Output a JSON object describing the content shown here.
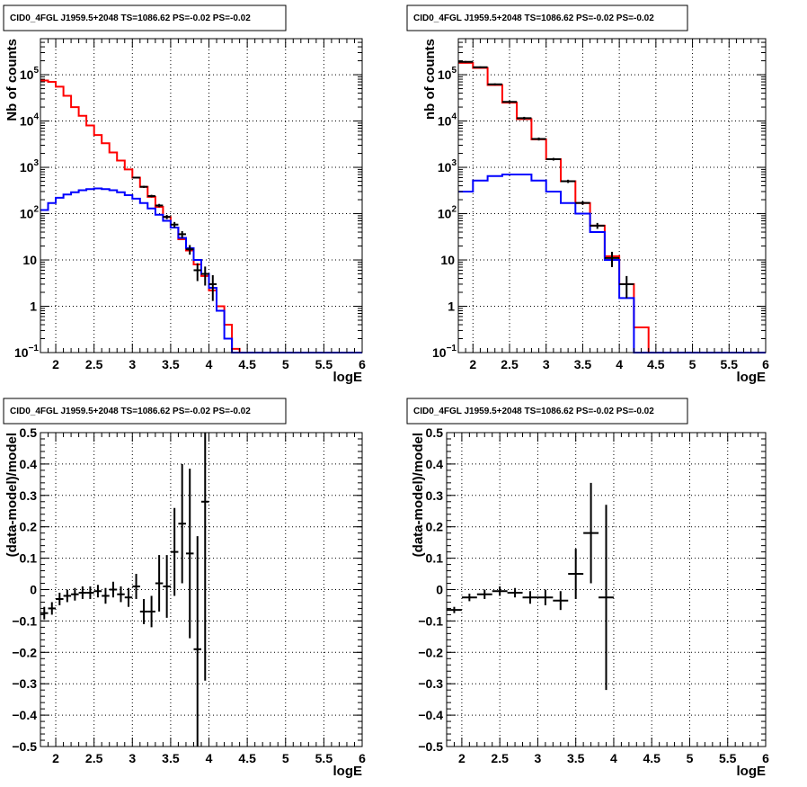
{
  "chart_data": [
    {
      "type": "histogram",
      "title": "CID0_4FGL J1959.5+2048 TS=1086.62 PS=-0.02 PS=-0.02",
      "xlabel": "logE",
      "ylabel": "Nb of counts",
      "xlim": [
        1.8,
        6.0
      ],
      "ylim": [
        0.1,
        600000
      ],
      "log_y": true,
      "grid": true,
      "bin_width": 0.1,
      "bin_edges": [
        1.8,
        1.9,
        2.0,
        2.1,
        2.2,
        2.3,
        2.4,
        2.5,
        2.6,
        2.7,
        2.8,
        2.9,
        3.0,
        3.1,
        3.2,
        3.3,
        3.4,
        3.5,
        3.6,
        3.7,
        3.8,
        3.9,
        4.0,
        4.1,
        4.2,
        4.3,
        4.4,
        4.5,
        4.6,
        4.7,
        4.8,
        4.9,
        5.0,
        5.1,
        5.2,
        5.3,
        5.4,
        5.5,
        5.6,
        5.7,
        5.8,
        5.9,
        6.0
      ],
      "series": [
        {
          "color": "#ff0000",
          "values": [
            75000,
            70000,
            55000,
            35000,
            20000,
            13000,
            8000,
            5000,
            3300,
            2100,
            1400,
            900,
            600,
            380,
            230,
            140,
            85,
            50,
            28,
            16,
            8,
            4.5,
            2.2,
            1.0,
            0.4,
            0.12,
            0.1,
            0.1,
            0.1,
            0.1,
            0.1,
            0.1,
            0.1,
            0.1,
            0.1,
            0.1,
            0.1,
            0.1,
            0.1,
            0.1,
            0.1,
            0.1
          ]
        },
        {
          "color": "#0000ff",
          "values": [
            120,
            170,
            220,
            260,
            290,
            320,
            340,
            350,
            340,
            320,
            290,
            250,
            210,
            170,
            130,
            95,
            70,
            50,
            30,
            18,
            10,
            5,
            2.5,
            0.8,
            0.2,
            0.1,
            0.1,
            0.1,
            0.1,
            0.1,
            0.1,
            0.1,
            0.1,
            0.1,
            0.1,
            0.1,
            0.1,
            0.1,
            0.1,
            0.1,
            0.1,
            0.1
          ]
        }
      ],
      "points": [
        {
          "x": 3.65,
          "y": 36,
          "yerr": 6,
          "xerr": 0.05
        },
        {
          "x": 3.75,
          "y": 17,
          "yerr": 4,
          "xerr": 0.05
        },
        {
          "x": 3.85,
          "y": 6,
          "yerr": 2.5,
          "xerr": 0.05
        },
        {
          "x": 3.95,
          "y": 5,
          "yerr": 2.2,
          "xerr": 0.05
        },
        {
          "x": 4.05,
          "y": 3,
          "yerr": 1.7,
          "xerr": 0.05
        },
        {
          "x": 3.55,
          "y": 58,
          "yerr": 8,
          "xerr": 0.05
        },
        {
          "x": 3.45,
          "y": 85,
          "yerr": 9,
          "xerr": 0.05
        },
        {
          "x": 3.35,
          "y": 150,
          "yerr": 12,
          "xerr": 0.05
        },
        {
          "x": 3.25,
          "y": 240,
          "yerr": 15,
          "xerr": 0.05
        },
        {
          "x": 3.15,
          "y": 380,
          "yerr": 20,
          "xerr": 0.05
        },
        {
          "x": 3.05,
          "y": 600,
          "yerr": 25,
          "xerr": 0.05
        }
      ]
    },
    {
      "type": "histogram",
      "title": "CID0_4FGL J1959.5+2048 TS=1086.62 PS=-0.02 PS=-0.02",
      "xlabel": "logE",
      "ylabel": "nb of counts",
      "xlim": [
        1.8,
        6.0
      ],
      "ylim": [
        0.1,
        600000
      ],
      "log_y": true,
      "grid": true,
      "bin_width": 0.2,
      "bin_edges": [
        1.8,
        2.0,
        2.2,
        2.4,
        2.6,
        2.8,
        3.0,
        3.2,
        3.4,
        3.6,
        3.8,
        4.0,
        4.2,
        4.4,
        4.6,
        4.8,
        5.0,
        5.2,
        5.4,
        5.6,
        5.8,
        6.0
      ],
      "series": [
        {
          "color": "#ff0000",
          "values": [
            180000,
            140000,
            60000,
            25000,
            11000,
            4000,
            1500,
            500,
            170,
            55,
            12,
            3,
            0.35,
            0.1,
            0.1,
            0.1,
            0.1,
            0.1,
            0.1,
            0.1,
            0.1
          ]
        },
        {
          "color": "#0000ff",
          "values": [
            300,
            520,
            650,
            700,
            700,
            520,
            300,
            170,
            100,
            40,
            10,
            1.5,
            0.1,
            0.1,
            0.1,
            0.1,
            0.1,
            0.1,
            0.1,
            0.1,
            0.1
          ]
        }
      ],
      "points": [
        {
          "x": 1.9,
          "y": 190000,
          "yerr": 8000,
          "xerr": 0.1
        },
        {
          "x": 2.1,
          "y": 145000,
          "yerr": 6000,
          "xerr": 0.1
        },
        {
          "x": 2.3,
          "y": 62000,
          "yerr": 3000,
          "xerr": 0.1
        },
        {
          "x": 2.5,
          "y": 26000,
          "yerr": 1500,
          "xerr": 0.1
        },
        {
          "x": 2.7,
          "y": 11500,
          "yerr": 800,
          "xerr": 0.1
        },
        {
          "x": 2.9,
          "y": 4100,
          "yerr": 300,
          "xerr": 0.1
        },
        {
          "x": 3.1,
          "y": 1500,
          "yerr": 100,
          "xerr": 0.1
        },
        {
          "x": 3.3,
          "y": 500,
          "yerr": 40,
          "xerr": 0.1
        },
        {
          "x": 3.5,
          "y": 170,
          "yerr": 15,
          "xerr": 0.1
        },
        {
          "x": 3.7,
          "y": 55,
          "yerr": 8,
          "xerr": 0.1
        },
        {
          "x": 3.9,
          "y": 11,
          "yerr": 4,
          "xerr": 0.1
        },
        {
          "x": 4.1,
          "y": 3,
          "yerr": 1.5,
          "xerr": 0.1
        }
      ]
    },
    {
      "type": "scatter",
      "title": "CID0_4FGL J1959.5+2048 TS=1086.62 PS=-0.02 PS=-0.02",
      "xlabel": "logE",
      "ylabel": "(data-model)/model",
      "xlim": [
        1.8,
        6.0
      ],
      "ylim": [
        -0.5,
        0.5
      ],
      "grid": true,
      "points": [
        {
          "x": 1.85,
          "y": -0.075,
          "yerr": 0.02,
          "xerr": 0.05
        },
        {
          "x": 1.95,
          "y": -0.06,
          "yerr": 0.02,
          "xerr": 0.05
        },
        {
          "x": 2.05,
          "y": -0.03,
          "yerr": 0.02,
          "xerr": 0.05
        },
        {
          "x": 2.15,
          "y": -0.02,
          "yerr": 0.02,
          "xerr": 0.05
        },
        {
          "x": 2.25,
          "y": -0.015,
          "yerr": 0.02,
          "xerr": 0.05
        },
        {
          "x": 2.35,
          "y": -0.01,
          "yerr": 0.02,
          "xerr": 0.05
        },
        {
          "x": 2.45,
          "y": -0.01,
          "yerr": 0.02,
          "xerr": 0.05
        },
        {
          "x": 2.55,
          "y": -0.005,
          "yerr": 0.02,
          "xerr": 0.05
        },
        {
          "x": 2.65,
          "y": -0.02,
          "yerr": 0.025,
          "xerr": 0.05
        },
        {
          "x": 2.75,
          "y": 0.0,
          "yerr": 0.025,
          "xerr": 0.05
        },
        {
          "x": 2.85,
          "y": -0.015,
          "yerr": 0.025,
          "xerr": 0.05
        },
        {
          "x": 2.95,
          "y": -0.025,
          "yerr": 0.03,
          "xerr": 0.05
        },
        {
          "x": 3.05,
          "y": 0.01,
          "yerr": 0.04,
          "xerr": 0.05
        },
        {
          "x": 3.15,
          "y": -0.07,
          "yerr": 0.04,
          "xerr": 0.05
        },
        {
          "x": 3.25,
          "y": -0.07,
          "yerr": 0.05,
          "xerr": 0.05
        },
        {
          "x": 3.35,
          "y": 0.02,
          "yerr": 0.09,
          "xerr": 0.05
        },
        {
          "x": 3.45,
          "y": 0.01,
          "yerr": 0.1,
          "xerr": 0.05
        },
        {
          "x": 3.55,
          "y": 0.12,
          "yerr": 0.14,
          "xerr": 0.05
        },
        {
          "x": 3.65,
          "y": 0.21,
          "yerr": 0.19,
          "xerr": 0.05
        },
        {
          "x": 3.75,
          "y": 0.115,
          "yerr": 0.27,
          "xerr": 0.05
        },
        {
          "x": 3.85,
          "y": -0.19,
          "yerr": 0.36,
          "xerr": 0.05
        },
        {
          "x": 3.95,
          "y": 0.28,
          "yerr": 0.57,
          "xerr": 0.05
        }
      ]
    },
    {
      "type": "scatter",
      "title": "CID0_4FGL J1959.5+2048 TS=1086.62 PS=-0.02 PS=-0.02",
      "xlabel": "logE",
      "ylabel": "(data-model)/model",
      "xlim": [
        1.8,
        6.0
      ],
      "ylim": [
        -0.5,
        0.5
      ],
      "grid": true,
      "points": [
        {
          "x": 1.9,
          "y": -0.065,
          "yerr": 0.01,
          "xerr": 0.1
        },
        {
          "x": 2.1,
          "y": -0.025,
          "yerr": 0.012,
          "xerr": 0.1
        },
        {
          "x": 2.3,
          "y": -0.015,
          "yerr": 0.015,
          "xerr": 0.1
        },
        {
          "x": 2.5,
          "y": -0.005,
          "yerr": 0.015,
          "xerr": 0.1
        },
        {
          "x": 2.7,
          "y": -0.01,
          "yerr": 0.015,
          "xerr": 0.1
        },
        {
          "x": 2.9,
          "y": -0.025,
          "yerr": 0.02,
          "xerr": 0.1
        },
        {
          "x": 3.1,
          "y": -0.025,
          "yerr": 0.025,
          "xerr": 0.1
        },
        {
          "x": 3.3,
          "y": -0.035,
          "yerr": 0.03,
          "xerr": 0.1
        },
        {
          "x": 3.5,
          "y": 0.05,
          "yerr": 0.08,
          "xerr": 0.1
        },
        {
          "x": 3.7,
          "y": 0.18,
          "yerr": 0.16,
          "xerr": 0.1
        },
        {
          "x": 3.9,
          "y": -0.025,
          "yerr": 0.295,
          "xerr": 0.1
        }
      ]
    }
  ]
}
